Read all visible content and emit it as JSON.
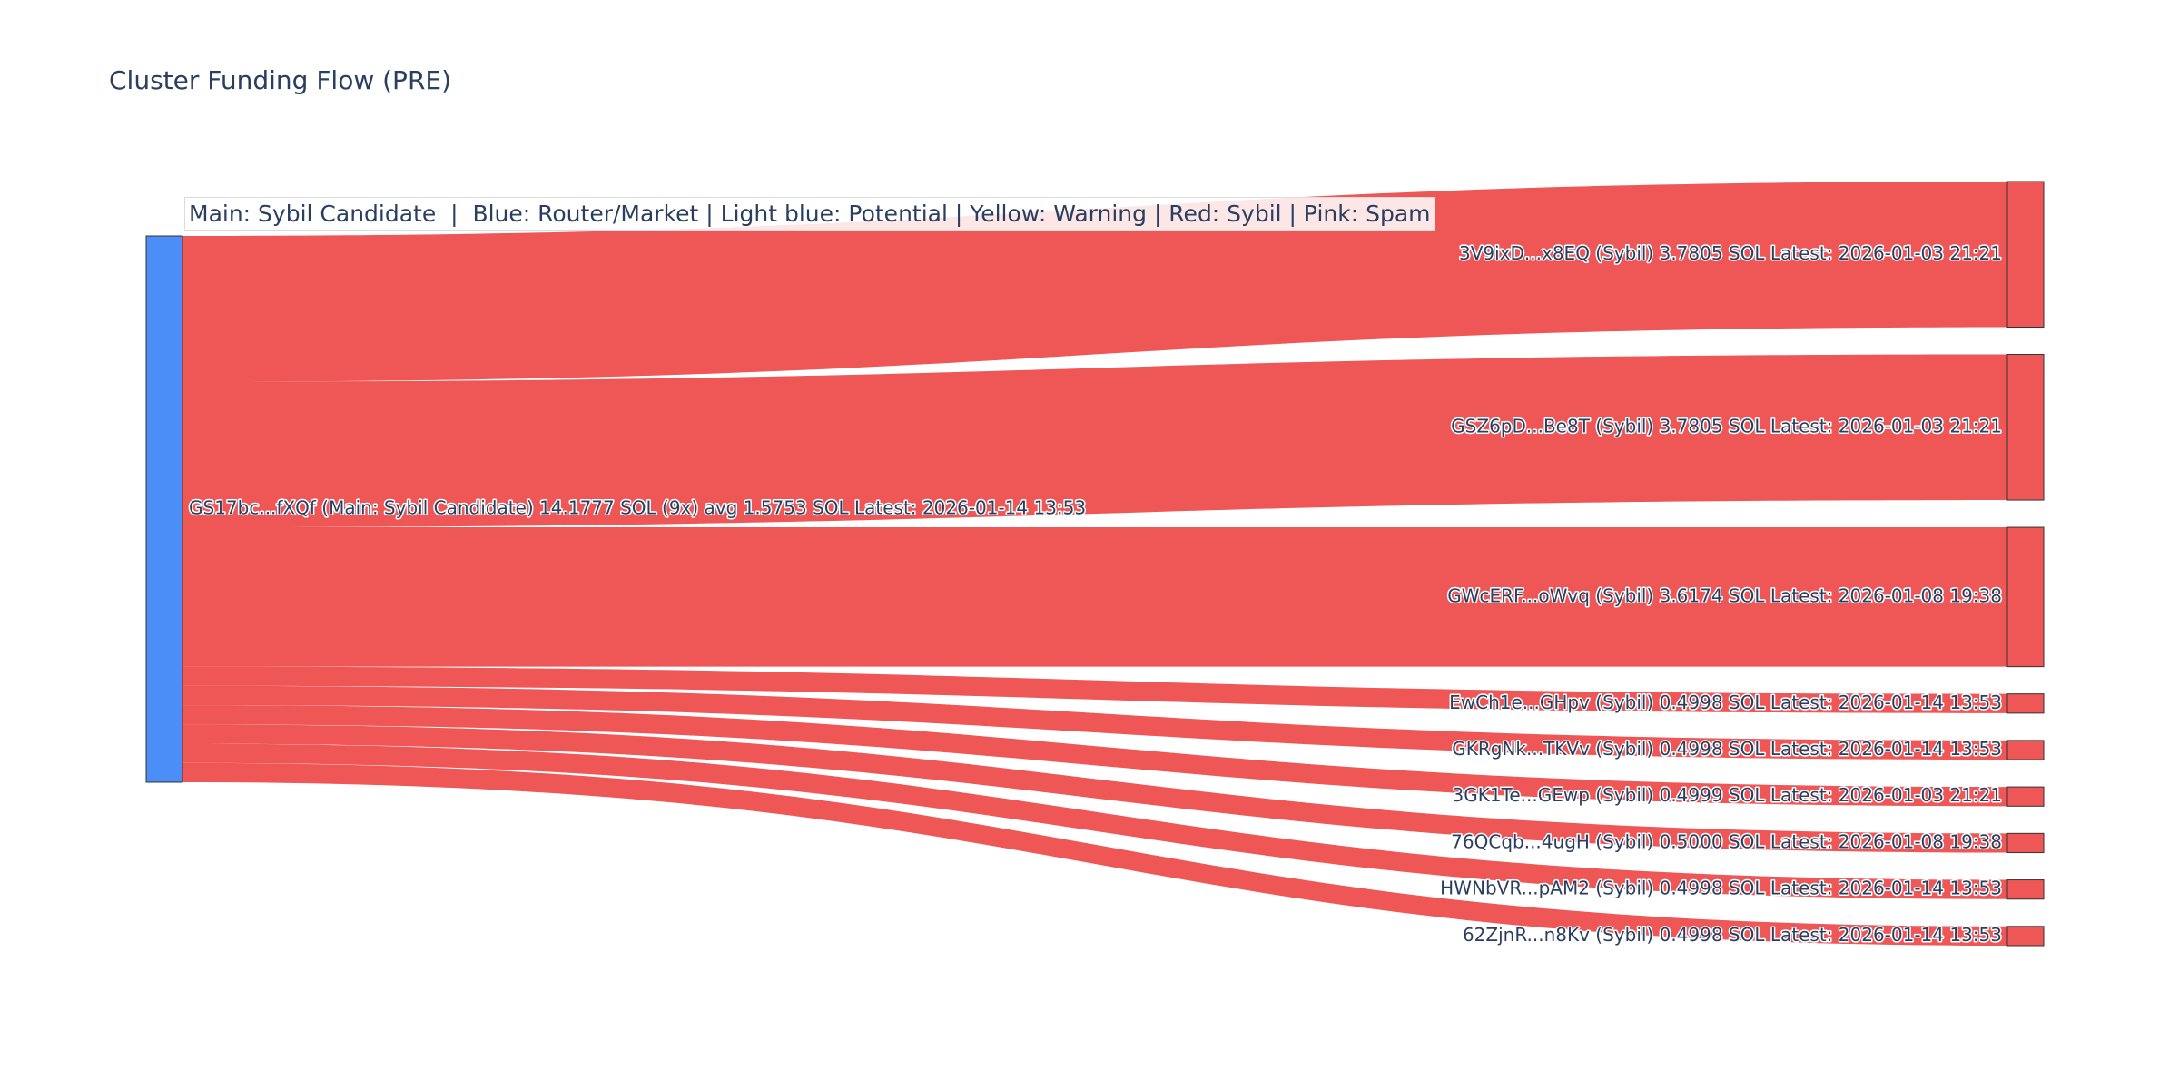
{
  "title": "Cluster Funding Flow (PRE)",
  "legend": "Main: Sybil Candidate  |  Blue: Router/Market | Light blue: Potential | Yellow: Warning | Red: Sybil | Pink: Spam",
  "colors": {
    "main_node": "#4c8ef7",
    "sybil": "#ef5656",
    "node_border": "#333333"
  },
  "chart_data": {
    "type": "sankey",
    "unit": "SOL",
    "source": {
      "id": "GS17bc...fXQf",
      "label": "GS17bc...fXQf (Main: Sybil Candidate) 14.1777 SOL (9x) avg 1.5753 SOL Latest: 2026-01-14 13:53",
      "role": "Main: Sybil Candidate",
      "total": 14.1777,
      "count": 9,
      "avg": 1.5753
    },
    "targets": [
      {
        "id": "3V9ixD...x8EQ",
        "label": "3V9ixD...x8EQ (Sybil) 3.7805 SOL Latest: 2026-01-03 21:21",
        "value": 3.7805,
        "category": "Sybil"
      },
      {
        "id": "GSZ6pD...Be8T",
        "label": "GSZ6pD...Be8T (Sybil) 3.7805 SOL Latest: 2026-01-03 21:21",
        "value": 3.7805,
        "category": "Sybil"
      },
      {
        "id": "GWcERF...oWvq",
        "label": "GWcERF...oWvq (Sybil) 3.6174 SOL Latest: 2026-01-08 19:38",
        "value": 3.6174,
        "category": "Sybil"
      },
      {
        "id": "EwCh1e...GHpv",
        "label": "EwCh1e...GHpv (Sybil) 0.4998 SOL Latest: 2026-01-14 13:53",
        "value": 0.4998,
        "category": "Sybil"
      },
      {
        "id": "GKRgNk...TKVv",
        "label": "GKRgNk...TKVv (Sybil) 0.4998 SOL Latest: 2026-01-14 13:53",
        "value": 0.4998,
        "category": "Sybil"
      },
      {
        "id": "3GK1Te...GEwp",
        "label": "3GK1Te...GEwp (Sybil) 0.4999 SOL Latest: 2026-01-03 21:21",
        "value": 0.4999,
        "category": "Sybil"
      },
      {
        "id": "76QCqb...4ugH",
        "label": "76QCqb...4ugH (Sybil) 0.5000 SOL Latest: 2026-01-08 19:38",
        "value": 0.5,
        "category": "Sybil"
      },
      {
        "id": "HWNbVR...pAM2",
        "label": "HWNbVR...pAM2 (Sybil) 0.4998 SOL Latest: 2026-01-14 13:53",
        "value": 0.4998,
        "category": "Sybil"
      },
      {
        "id": "62ZjnR...n8Kv",
        "label": "62ZjnR...n8Kv (Sybil) 0.4998 SOL Latest: 2026-01-14 13:53",
        "value": 0.4998,
        "category": "Sybil"
      }
    ]
  }
}
